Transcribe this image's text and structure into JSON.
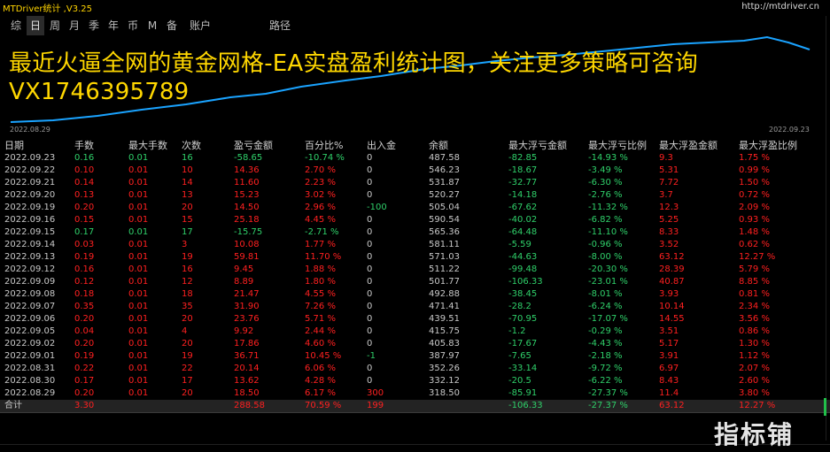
{
  "app": {
    "title": "MTDriver统计 ,V3.25",
    "url": "http://mtdriver.cn"
  },
  "toolbar": {
    "items": [
      {
        "label": "综",
        "active": false
      },
      {
        "label": "日",
        "active": true
      },
      {
        "label": "周",
        "active": false
      },
      {
        "label": "月",
        "active": false
      },
      {
        "label": "季",
        "active": false
      },
      {
        "label": "年",
        "active": false
      },
      {
        "label": "币",
        "active": false
      },
      {
        "label": "M",
        "active": false
      },
      {
        "label": "备",
        "active": false
      },
      {
        "label": "账户",
        "active": false
      },
      {
        "label": "路径",
        "active": false
      }
    ]
  },
  "chart": {
    "start_date": "2022.08.29",
    "end_date": "2022.09.23",
    "line_color": "#1aa3ff",
    "overlay_line1": "最近火逼全网的黄金网格-EA实盘盈利统计图，关注更多策略可咨询",
    "overlay_line2": "VX1746395789"
  },
  "table": {
    "headers": [
      "日期",
      "手数",
      "最大手数",
      "次数",
      "盈亏金额",
      "百分比%",
      "出入金",
      "余额",
      "最大浮亏金额",
      "最大浮亏比例",
      "最大浮盈金额",
      "最大浮盈比例"
    ],
    "rows": [
      [
        "2022.09.23",
        "0.16",
        "0.01",
        "16",
        "-58.65",
        "-10.74 %",
        "0",
        "487.58",
        "-82.85",
        "-14.93 %",
        "9.3",
        "1.75 %"
      ],
      [
        "2022.09.22",
        "0.10",
        "0.01",
        "10",
        "14.36",
        "2.70 %",
        "0",
        "546.23",
        "-18.67",
        "-3.49 %",
        "5.31",
        "0.99 %"
      ],
      [
        "2022.09.21",
        "0.14",
        "0.01",
        "14",
        "11.60",
        "2.23 %",
        "0",
        "531.87",
        "-32.77",
        "-6.30 %",
        "7.72",
        "1.50 %"
      ],
      [
        "2022.09.20",
        "0.13",
        "0.01",
        "13",
        "15.23",
        "3.02 %",
        "0",
        "520.27",
        "-14.18",
        "-2.76 %",
        "3.7",
        "0.72 %"
      ],
      [
        "2022.09.19",
        "0.20",
        "0.01",
        "20",
        "14.50",
        "2.96 %",
        "-100",
        "505.04",
        "-67.62",
        "-11.32 %",
        "12.3",
        "2.09 %"
      ],
      [
        "2022.09.16",
        "0.15",
        "0.01",
        "15",
        "25.18",
        "4.45 %",
        "0",
        "590.54",
        "-40.02",
        "-6.82 %",
        "5.25",
        "0.93 %"
      ],
      [
        "2022.09.15",
        "0.17",
        "0.01",
        "17",
        "-15.75",
        "-2.71 %",
        "0",
        "565.36",
        "-64.48",
        "-11.10 %",
        "8.33",
        "1.48 %"
      ],
      [
        "2022.09.14",
        "0.03",
        "0.01",
        "3",
        "10.08",
        "1.77 %",
        "0",
        "581.11",
        "-5.59",
        "-0.96 %",
        "3.52",
        "0.62 %"
      ],
      [
        "2022.09.13",
        "0.19",
        "0.01",
        "19",
        "59.81",
        "11.70 %",
        "0",
        "571.03",
        "-44.63",
        "-8.00 %",
        "63.12",
        "12.27 %"
      ],
      [
        "2022.09.12",
        "0.16",
        "0.01",
        "16",
        "9.45",
        "1.88 %",
        "0",
        "511.22",
        "-99.48",
        "-20.30 %",
        "28.39",
        "5.79 %"
      ],
      [
        "2022.09.09",
        "0.12",
        "0.01",
        "12",
        "8.89",
        "1.80 %",
        "0",
        "501.77",
        "-106.33",
        "-23.01 %",
        "40.87",
        "8.85 %"
      ],
      [
        "2022.09.08",
        "0.18",
        "0.01",
        "18",
        "21.47",
        "4.55 %",
        "0",
        "492.88",
        "-38.45",
        "-8.01 %",
        "3.93",
        "0.81 %"
      ],
      [
        "2022.09.07",
        "0.35",
        "0.01",
        "35",
        "31.90",
        "7.26 %",
        "0",
        "471.41",
        "-28.2",
        "-6.24 %",
        "10.14",
        "2.34 %"
      ],
      [
        "2022.09.06",
        "0.20",
        "0.01",
        "20",
        "23.76",
        "5.71 %",
        "0",
        "439.51",
        "-70.95",
        "-17.07 %",
        "14.55",
        "3.56 %"
      ],
      [
        "2022.09.05",
        "0.04",
        "0.01",
        "4",
        "9.92",
        "2.44 %",
        "0",
        "415.75",
        "-1.2",
        "-0.29 %",
        "3.51",
        "0.86 %"
      ],
      [
        "2022.09.02",
        "0.20",
        "0.01",
        "20",
        "17.86",
        "4.60 %",
        "0",
        "405.83",
        "-17.67",
        "-4.43 %",
        "5.17",
        "1.30 %"
      ],
      [
        "2022.09.01",
        "0.19",
        "0.01",
        "19",
        "36.71",
        "10.45 %",
        "-1",
        "387.97",
        "-7.65",
        "-2.18 %",
        "3.91",
        "1.12 %"
      ],
      [
        "2022.08.31",
        "0.22",
        "0.01",
        "22",
        "20.14",
        "6.06 %",
        "0",
        "352.26",
        "-33.14",
        "-9.72 %",
        "6.97",
        "2.07 %"
      ],
      [
        "2022.08.30",
        "0.17",
        "0.01",
        "17",
        "13.62",
        "4.28 %",
        "0",
        "332.12",
        "-20.5",
        "-6.22 %",
        "8.43",
        "2.60 %"
      ],
      [
        "2022.08.29",
        "0.20",
        "0.01",
        "20",
        "18.50",
        "6.17 %",
        "300",
        "318.50",
        "-85.91",
        "-27.37 %",
        "11.4",
        "3.80 %"
      ]
    ],
    "total": [
      "合计",
      "3.30",
      "",
      "",
      "288.58",
      "70.59 %",
      "199",
      "",
      "-106.33",
      "-27.37 %",
      "63.12",
      "12.27 %"
    ]
  },
  "colors": {
    "profit": "#ff2020",
    "loss": "#2fd06a",
    "neutral": "#c8c8c8",
    "title_yellow": "#ffd400"
  },
  "watermark": "指标铺"
}
